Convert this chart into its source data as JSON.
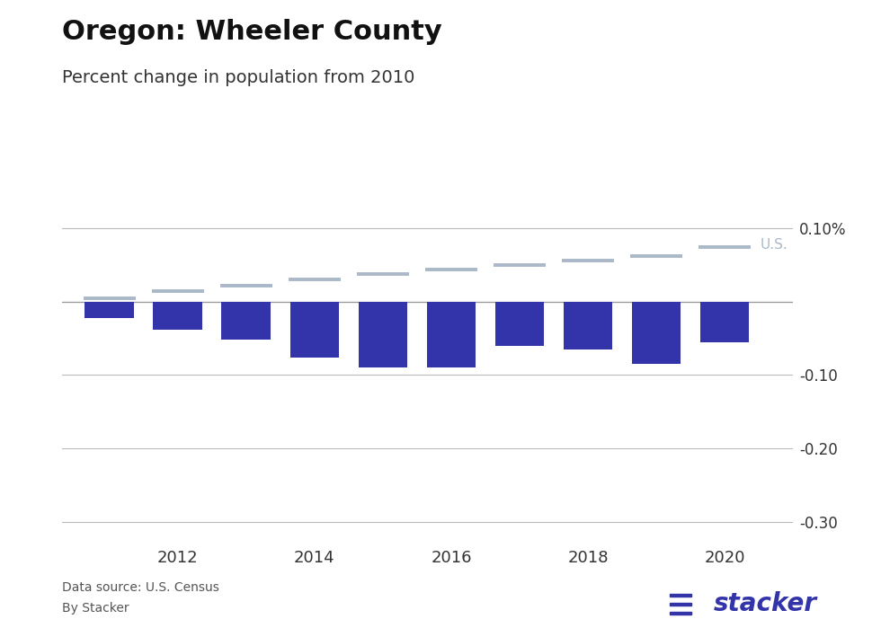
{
  "title": "Oregon: Wheeler County",
  "subtitle": "Percent change in population from 2010",
  "years": [
    2011,
    2012,
    2013,
    2014,
    2015,
    2016,
    2017,
    2018,
    2019,
    2020
  ],
  "county_values": [
    -0.022,
    -0.038,
    -0.052,
    -0.076,
    -0.09,
    -0.09,
    -0.06,
    -0.065,
    -0.085,
    -0.055
  ],
  "us_values": [
    0.004,
    0.014,
    0.022,
    0.03,
    0.038,
    0.044,
    0.05,
    0.056,
    0.062,
    0.074
  ],
  "bar_color": "#3333aa",
  "us_line_color": "#aab8c8",
  "us_label_color": "#aab8c8",
  "us_label": "U.S.",
  "ylim": [
    -0.325,
    0.12
  ],
  "yticks": [
    0.1,
    0.0,
    -0.1,
    -0.2,
    -0.3
  ],
  "ytick_labels": [
    "0.10%",
    "",
    "-0.10",
    "-0.20",
    "-0.30"
  ],
  "grid_color": "#bbbbbb",
  "background_color": "#ffffff",
  "source_text": "Data source: U.S. Census",
  "by_text": "By Stacker",
  "title_fontsize": 22,
  "subtitle_fontsize": 14
}
